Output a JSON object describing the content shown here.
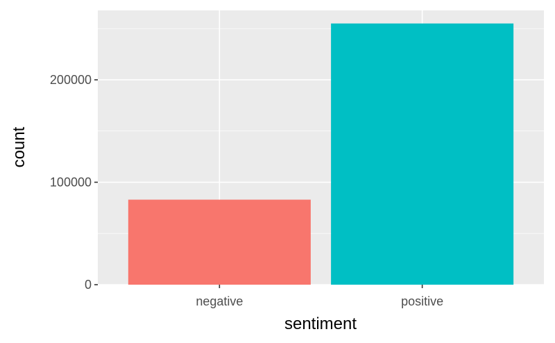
{
  "chart_data": {
    "type": "bar",
    "title": "",
    "xlabel": "sentiment",
    "ylabel": "count",
    "categories": [
      "negative",
      "positive"
    ],
    "values": [
      83000,
      255000
    ],
    "bar_colors": [
      "#F8766D",
      "#00BFC4"
    ],
    "yticks": [
      0,
      100000,
      200000
    ],
    "ytick_labels": [
      "0",
      "100000",
      "200000"
    ],
    "ylim": [
      0,
      267750
    ],
    "grid": true,
    "legend": "none",
    "panel_background": "#EBEBEB",
    "grid_color": "#FFFFFF"
  }
}
